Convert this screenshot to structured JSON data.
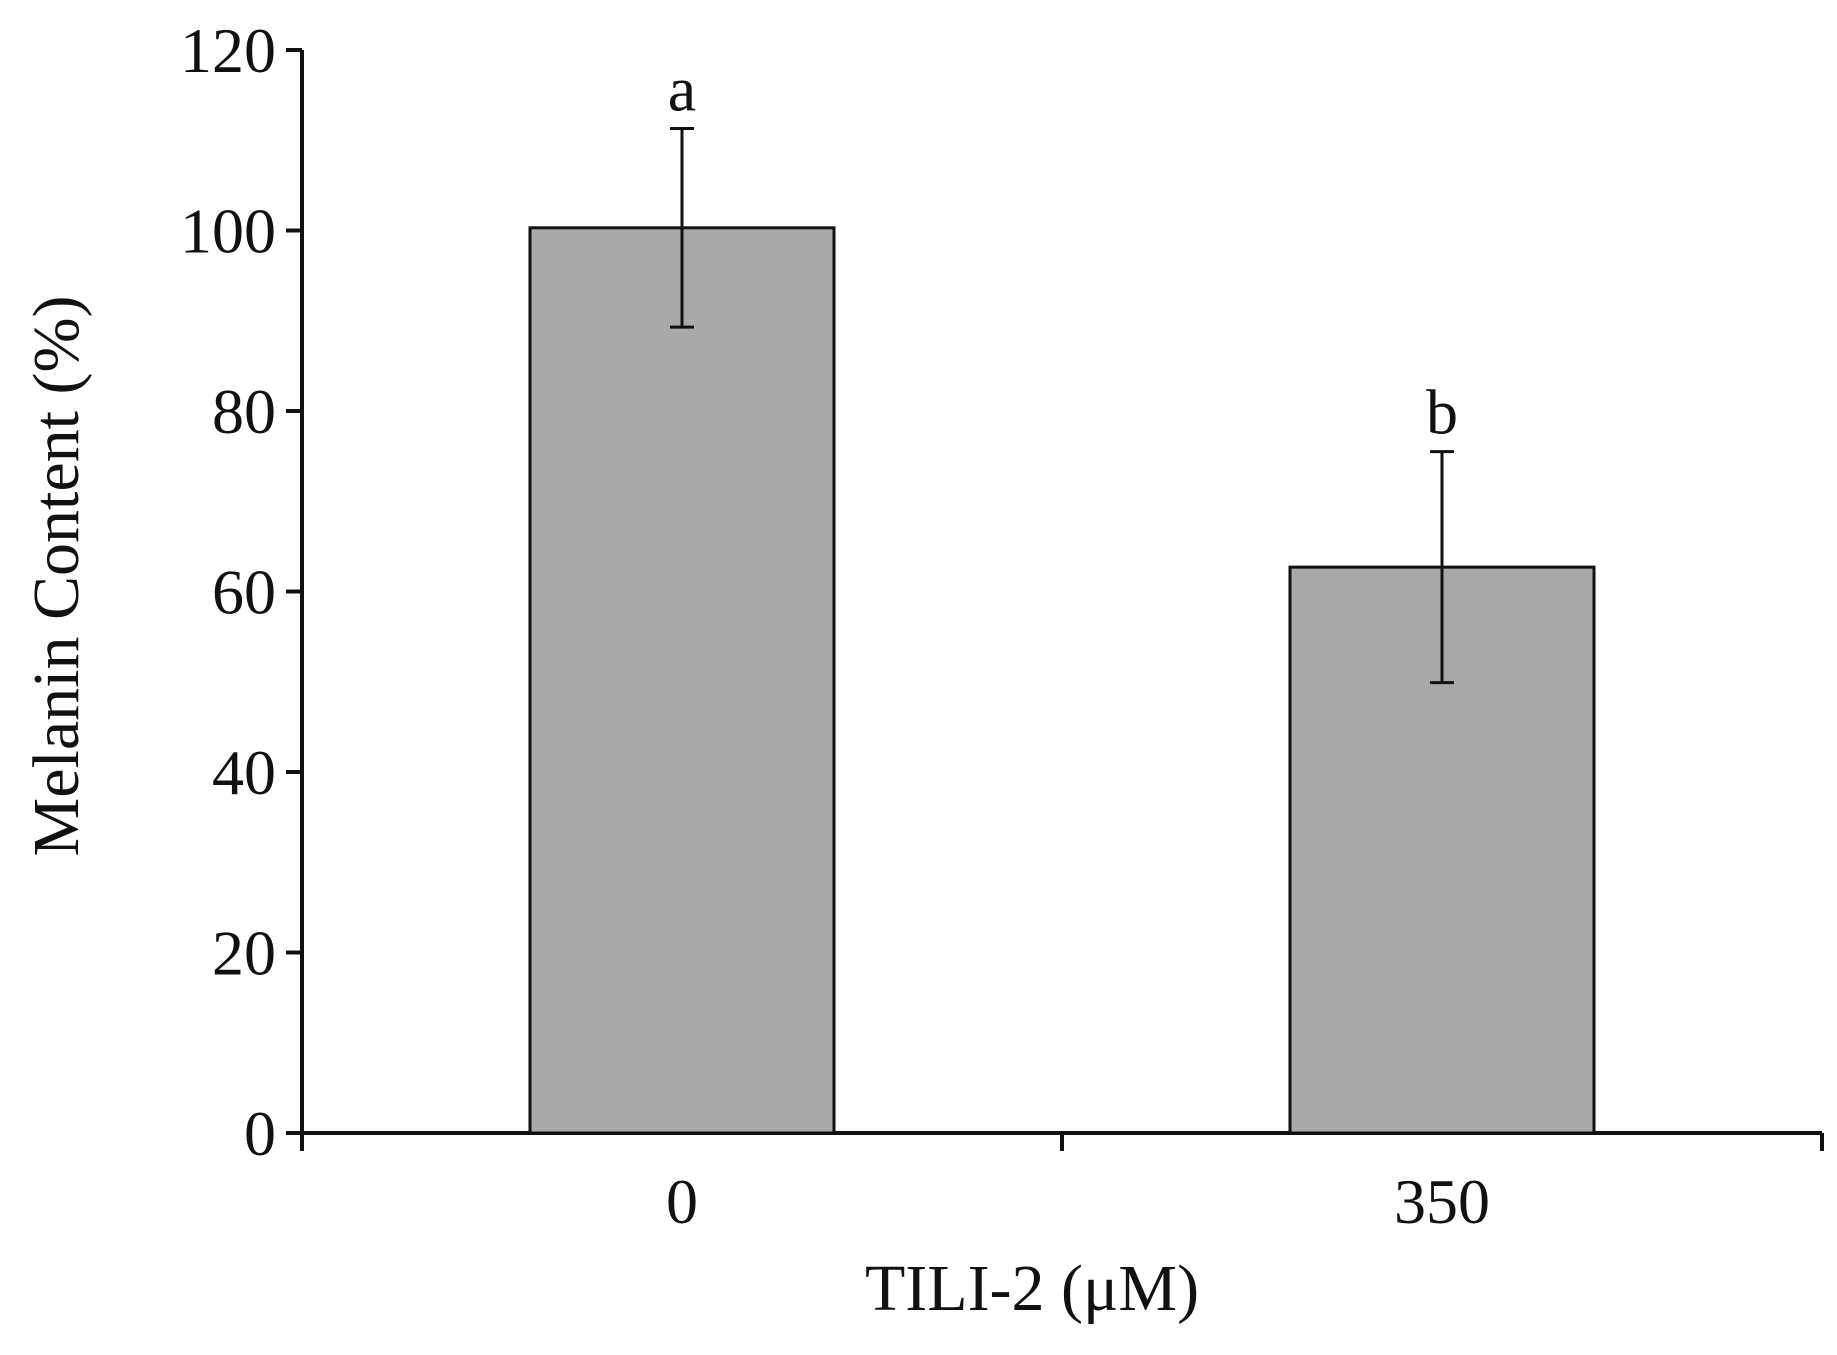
{
  "chart_data": {
    "type": "bar",
    "title": "",
    "xlabel": "TILI-2 (μM)",
    "ylabel": "Melanin Content (%)",
    "categories": [
      "0",
      "350"
    ],
    "values": [
      100.3,
      62.7
    ],
    "error": [
      11,
      12.8
    ],
    "significance": [
      "a",
      "b"
    ],
    "ylim": [
      0,
      120
    ],
    "yticks": [
      0,
      20,
      40,
      60,
      80,
      100,
      120
    ],
    "grid": false,
    "legend": "none",
    "colors": {
      "bar": "#a9a9a9",
      "axis": "#111111"
    }
  }
}
